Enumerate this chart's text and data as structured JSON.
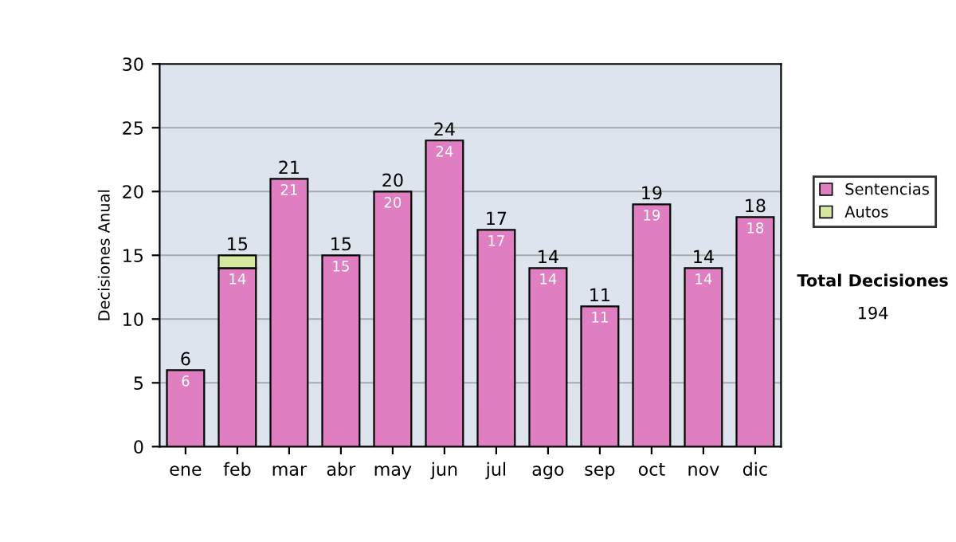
{
  "chart_data": {
    "type": "bar",
    "ylabel": "Decisiones Anual",
    "categories": [
      "ene",
      "feb",
      "mar",
      "abr",
      "may",
      "jun",
      "jul",
      "ago",
      "sep",
      "oct",
      "nov",
      "dic"
    ],
    "series": [
      {
        "name": "Sentencias",
        "color": "#df7fc1",
        "values": [
          6,
          14,
          21,
          15,
          20,
          24,
          17,
          14,
          11,
          19,
          14,
          18
        ],
        "value_labels": [
          "6",
          "14",
          "21",
          "15",
          "20",
          "24",
          "17",
          "14",
          "11",
          "19",
          "14",
          "18"
        ]
      },
      {
        "name": "Autos",
        "color": "#d6e8a0",
        "values": [
          null,
          1,
          null,
          null,
          null,
          null,
          null,
          null,
          null,
          null,
          null,
          null
        ]
      }
    ],
    "stacked": true,
    "totals": [
      "6",
      "15",
      "21",
      "15",
      "20",
      "24",
      "17",
      "14",
      "11",
      "19",
      "14",
      "18"
    ],
    "ylim": [
      0,
      30
    ],
    "yticks": [
      0,
      5,
      10,
      15,
      20,
      25,
      30
    ],
    "grid": "y",
    "legend": "right",
    "annotations": [
      "Total Decisiones",
      "194"
    ]
  }
}
